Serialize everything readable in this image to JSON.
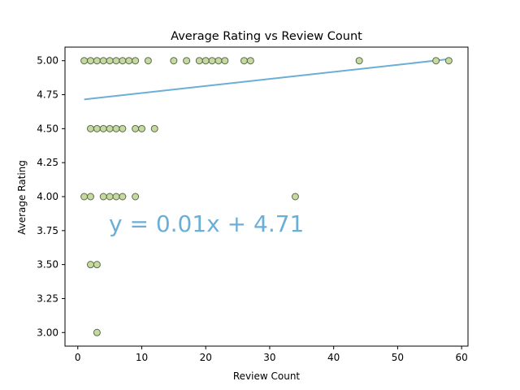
{
  "chart_data": {
    "type": "scatter",
    "title": "Average Rating vs Review Count",
    "xlabel": "Review Count",
    "ylabel": "Average Rating",
    "xlim": [
      -2,
      61
    ],
    "ylim": [
      2.9,
      5.1
    ],
    "x_ticks": [
      0,
      10,
      20,
      30,
      40,
      50,
      60
    ],
    "x_tick_labels": [
      "0",
      "10",
      "20",
      "30",
      "40",
      "50",
      "60"
    ],
    "y_ticks": [
      3.0,
      3.25,
      3.5,
      3.75,
      4.0,
      4.25,
      4.5,
      4.75,
      5.0
    ],
    "y_tick_labels": [
      "3.00",
      "3.25",
      "3.50",
      "3.75",
      "4.00",
      "4.25",
      "4.50",
      "4.75",
      "5.00"
    ],
    "grid": false,
    "series": [
      {
        "points": [
          [
            1,
            5.0
          ],
          [
            2,
            5.0
          ],
          [
            3,
            5.0
          ],
          [
            4,
            5.0
          ],
          [
            5,
            5.0
          ],
          [
            6,
            5.0
          ],
          [
            7,
            5.0
          ],
          [
            8,
            5.0
          ],
          [
            9,
            5.0
          ],
          [
            11,
            5.0
          ],
          [
            15,
            5.0
          ],
          [
            17,
            5.0
          ],
          [
            19,
            5.0
          ],
          [
            20,
            5.0
          ],
          [
            21,
            5.0
          ],
          [
            22,
            5.0
          ],
          [
            23,
            5.0
          ],
          [
            26,
            5.0
          ],
          [
            27,
            5.0
          ],
          [
            44,
            5.0
          ],
          [
            56,
            5.0
          ],
          [
            58,
            5.0
          ],
          [
            2,
            4.5
          ],
          [
            3,
            4.5
          ],
          [
            4,
            4.5
          ],
          [
            5,
            4.5
          ],
          [
            6,
            4.5
          ],
          [
            7,
            4.5
          ],
          [
            9,
            4.5
          ],
          [
            10,
            4.5
          ],
          [
            12,
            4.5
          ],
          [
            1,
            4.0
          ],
          [
            2,
            4.0
          ],
          [
            4,
            4.0
          ],
          [
            5,
            4.0
          ],
          [
            6,
            4.0
          ],
          [
            7,
            4.0
          ],
          [
            9,
            4.0
          ],
          [
            34,
            4.0
          ],
          [
            2,
            3.5
          ],
          [
            3,
            3.5
          ],
          [
            3,
            3.0
          ]
        ],
        "marker_fill": "#c5d9a0",
        "marker_edge": "#5a6b4a"
      }
    ],
    "trendline": {
      "slope": 0.0052,
      "intercept": 4.71,
      "x_range": [
        1,
        58
      ],
      "color": "#6baed6",
      "label": "y = 0.01x + 4.71"
    }
  }
}
